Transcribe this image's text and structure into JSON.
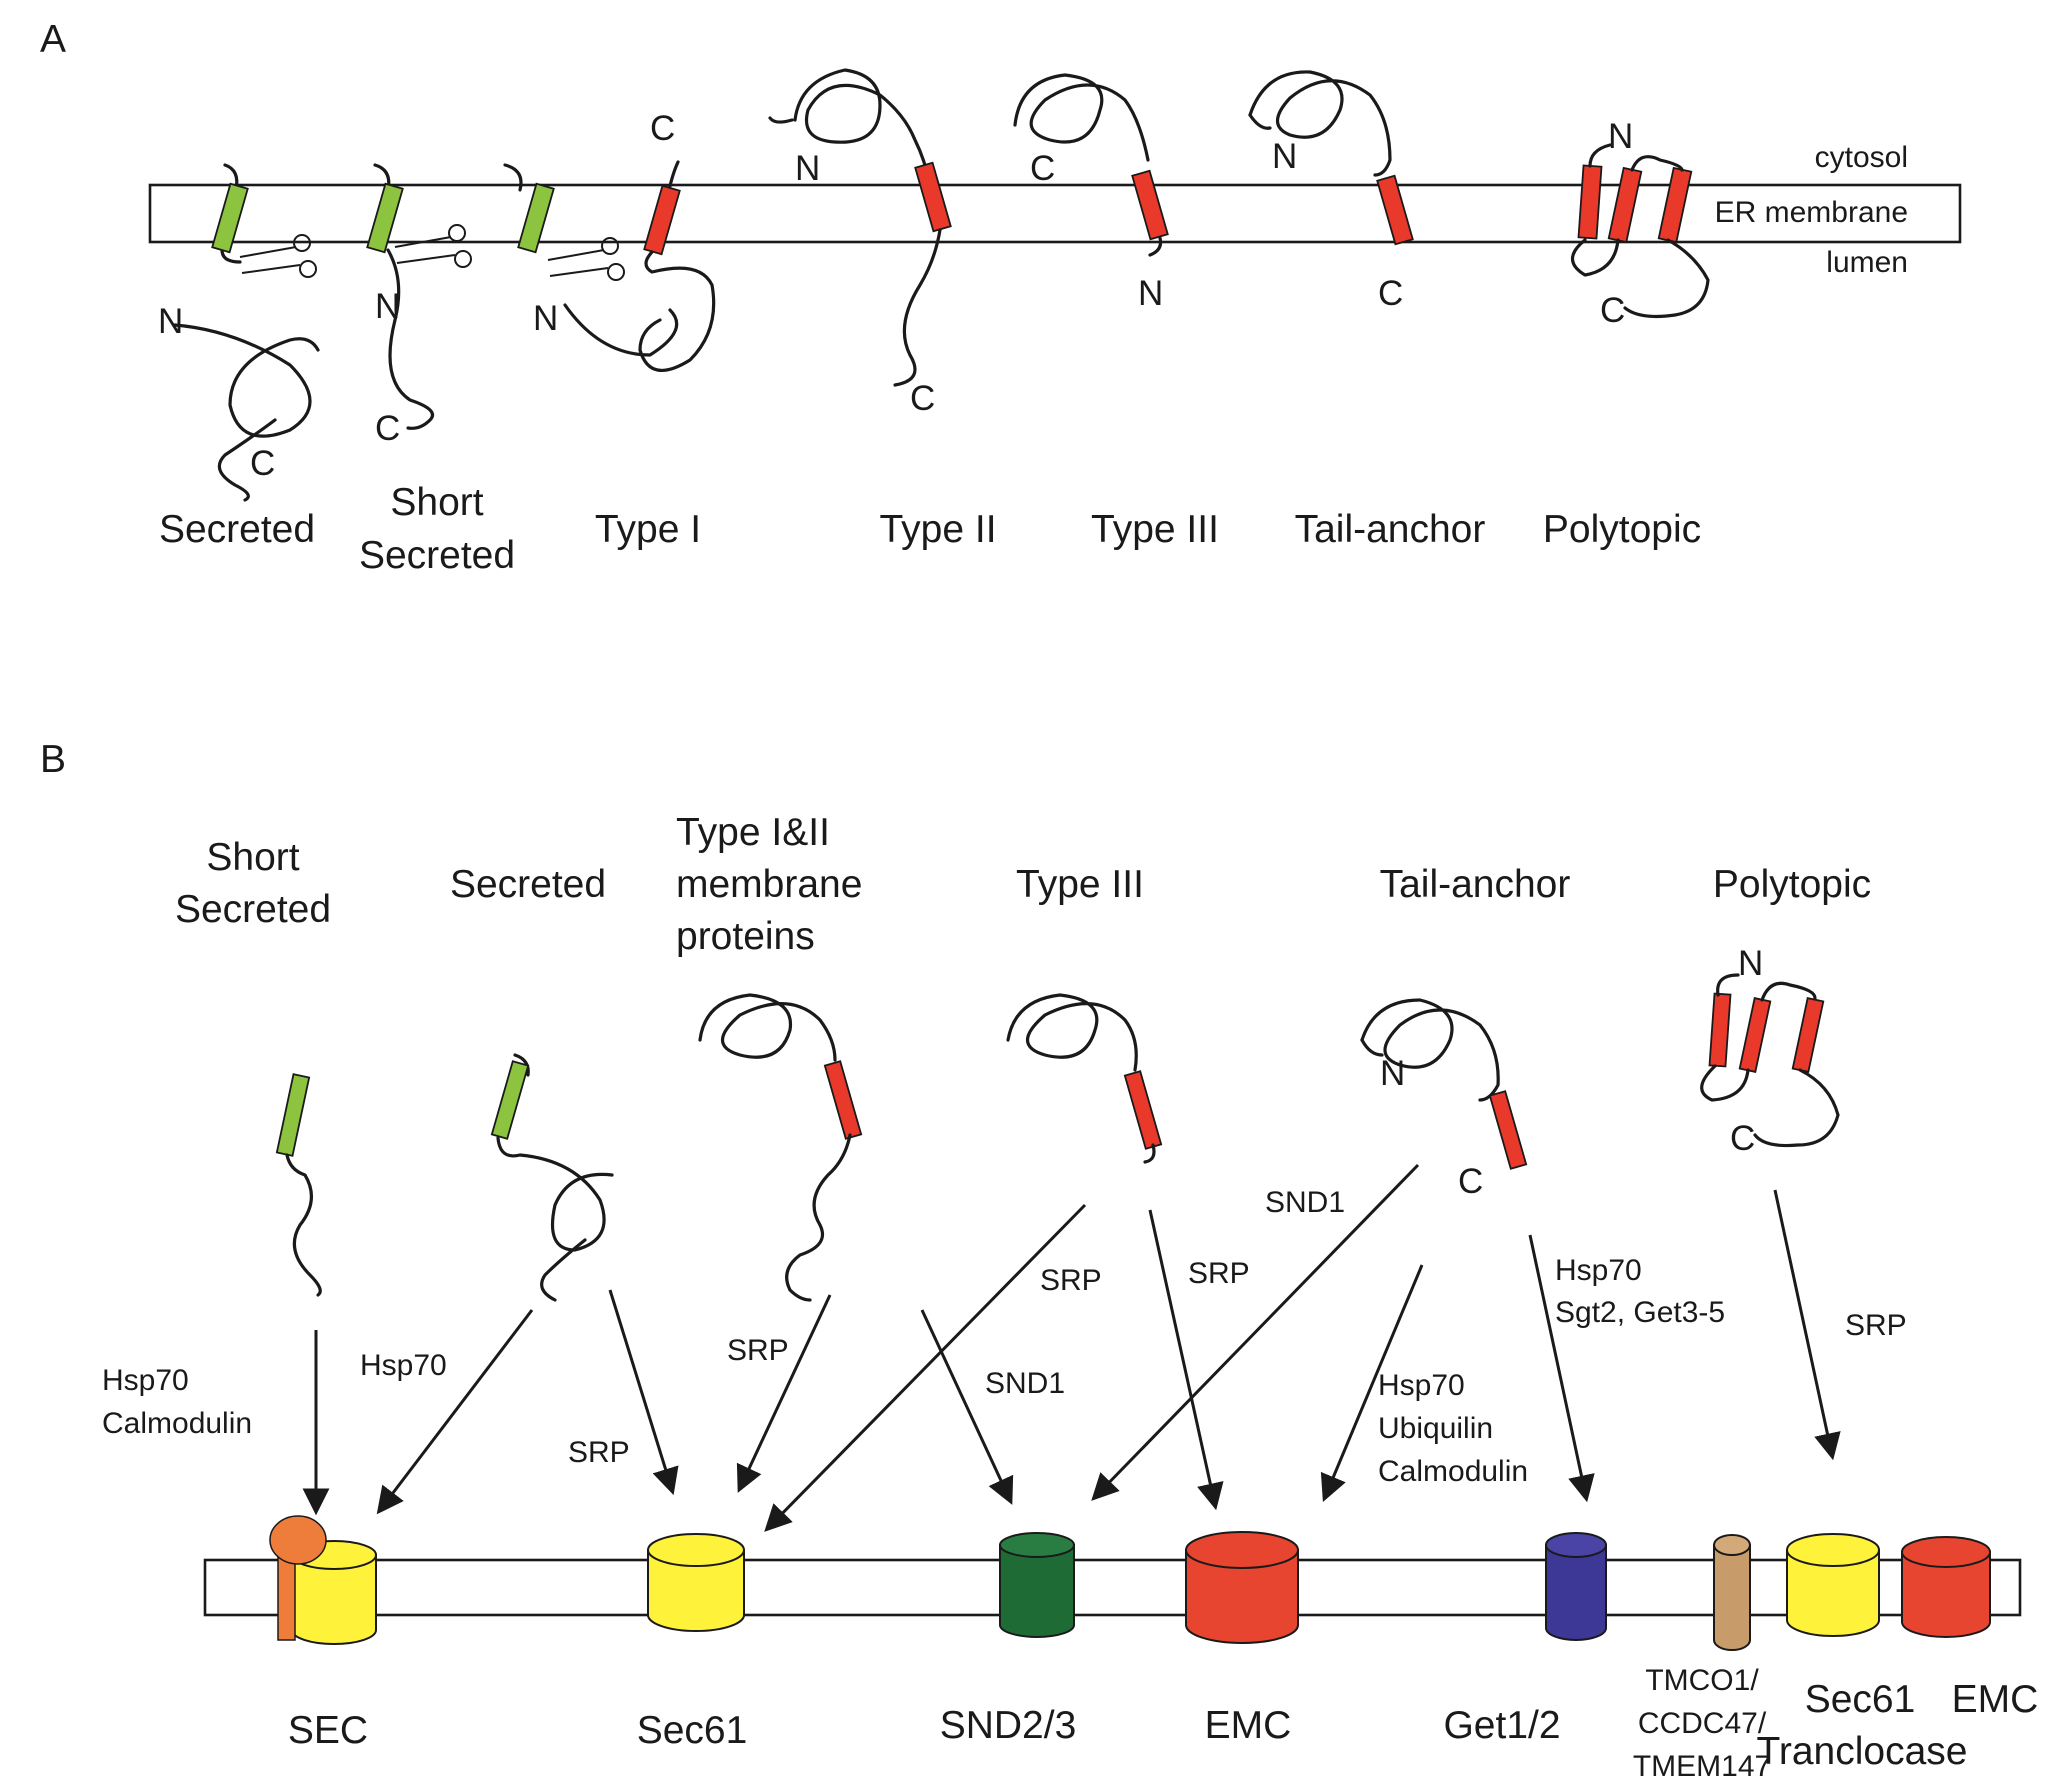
{
  "panel_a": {
    "label": "A",
    "cytosol": "cytosol",
    "membrane": "ER membrane",
    "lumen": "lumen",
    "types": {
      "secreted": "Secreted",
      "short_1": "Short",
      "short_2": "Secreted",
      "type1": "Type I",
      "type2": "Type II",
      "type3": "Type III",
      "tail": "Tail-anchor",
      "poly": "Polytopic"
    },
    "termini": {
      "n": "N",
      "c": "C"
    }
  },
  "panel_b": {
    "label": "B",
    "headers": {
      "short_1": "Short",
      "short_2": "Secreted",
      "secreted": "Secreted",
      "type12_1": "Type I&II",
      "type12_2": "membrane",
      "type12_3": "proteins",
      "type3": "Type III",
      "tail": "Tail-anchor",
      "poly": "Polytopic"
    },
    "pathways": {
      "hsp70_a": "Hsp70",
      "calmodulin_a": "Calmodulin",
      "hsp70_b": "Hsp70",
      "srp_a": "SRP",
      "srp_b": "SRP",
      "srp_c": "SRP",
      "srp_d": "SRP",
      "snd1_a": "SND1",
      "snd1_b": "SND1",
      "hsp70_c": "Hsp70",
      "ubiquilin": "Ubiquilin",
      "calmodulin_b": "Calmodulin",
      "hsp70_d": "Hsp70",
      "sgt2": "Sgt2, Get3-5",
      "srp_e": "SRP"
    },
    "complexes": {
      "sec": "SEC",
      "sec61": "Sec61",
      "snd23": "SND2/3",
      "emc": "EMC",
      "get12": "Get1/2",
      "tmco_1": "TMCO1/",
      "tmco_2": "CCDC47/",
      "tmco_3": "TMEM147",
      "sec61b": "Sec61",
      "tranclocase": "Tranclocase",
      "emc2": "EMC"
    },
    "termini": {
      "n": "N",
      "c": "C"
    }
  },
  "colors": {
    "signal_green": "#8cc43f",
    "tm_red": "#e8392b",
    "sec61_yellow": "#fff23a",
    "snd_green": "#1f6b35",
    "emc_red": "#e84530",
    "get_purple": "#3d3896",
    "tmco_tan": "#c89b6a",
    "sec62_orange": "#ee7d3b"
  }
}
